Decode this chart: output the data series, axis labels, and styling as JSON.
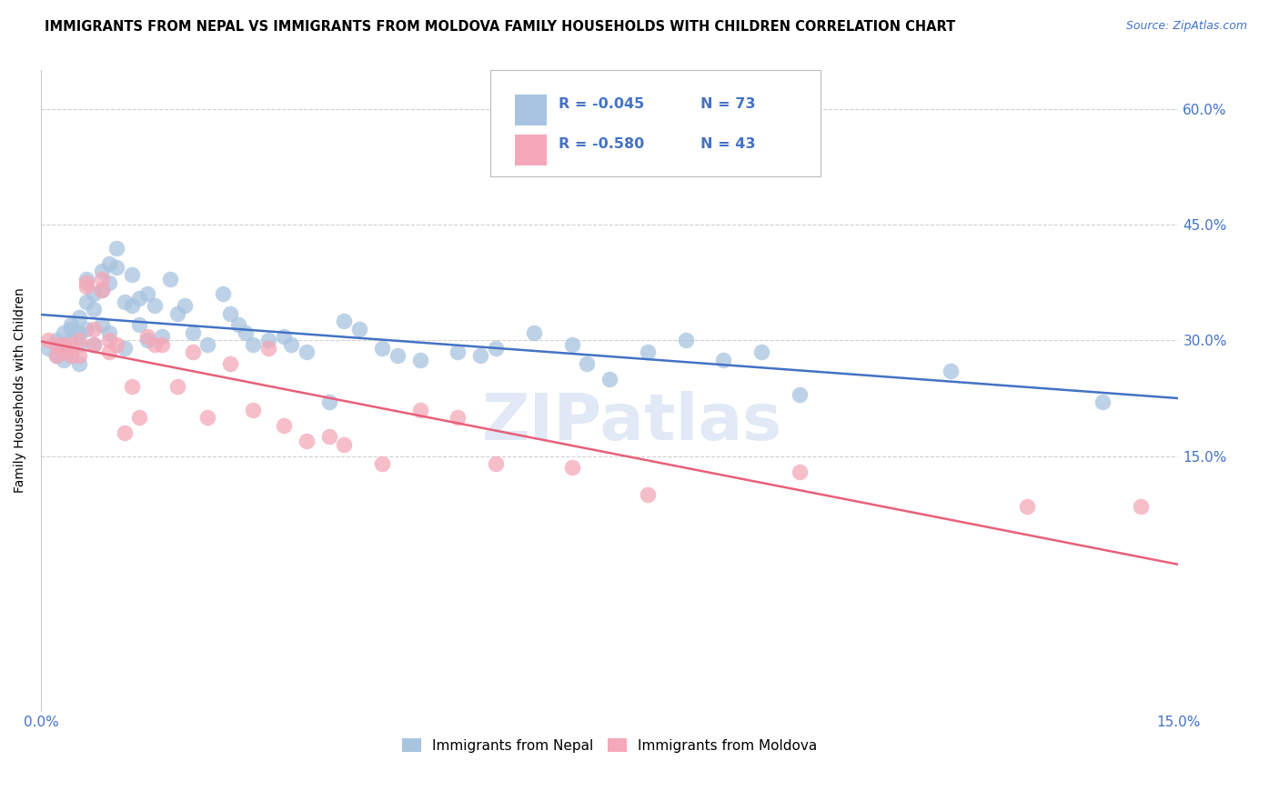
{
  "title": "IMMIGRANTS FROM NEPAL VS IMMIGRANTS FROM MOLDOVA FAMILY HOUSEHOLDS WITH CHILDREN CORRELATION CHART",
  "source": "Source: ZipAtlas.com",
  "ylabel": "Family Households with Children",
  "nepal_color": "#a8c4e0",
  "moldova_color": "#f4a8b8",
  "nepal_line_color": "#4472c4",
  "moldova_line_color": "#e8607a",
  "legend_r_color": "#4472c4",
  "nepal_R": "-0.045",
  "nepal_N": "73",
  "moldova_R": "-0.580",
  "moldova_N": "43",
  "nepal_x": [
    0.001,
    0.002,
    0.002,
    0.003,
    0.003,
    0.003,
    0.003,
    0.004,
    0.004,
    0.004,
    0.004,
    0.005,
    0.005,
    0.005,
    0.005,
    0.006,
    0.006,
    0.006,
    0.007,
    0.007,
    0.007,
    0.008,
    0.008,
    0.008,
    0.009,
    0.009,
    0.009,
    0.01,
    0.01,
    0.011,
    0.011,
    0.012,
    0.012,
    0.013,
    0.013,
    0.014,
    0.014,
    0.015,
    0.016,
    0.017,
    0.018,
    0.019,
    0.02,
    0.022,
    0.024,
    0.025,
    0.026,
    0.027,
    0.028,
    0.03,
    0.032,
    0.033,
    0.035,
    0.038,
    0.04,
    0.042,
    0.045,
    0.047,
    0.05,
    0.055,
    0.058,
    0.06,
    0.065,
    0.07,
    0.072,
    0.075,
    0.08,
    0.085,
    0.09,
    0.095,
    0.1,
    0.12,
    0.14
  ],
  "nepal_y": [
    0.29,
    0.3,
    0.28,
    0.31,
    0.295,
    0.285,
    0.275,
    0.32,
    0.315,
    0.3,
    0.285,
    0.33,
    0.31,
    0.295,
    0.27,
    0.38,
    0.35,
    0.315,
    0.36,
    0.34,
    0.295,
    0.39,
    0.365,
    0.32,
    0.4,
    0.375,
    0.31,
    0.42,
    0.395,
    0.35,
    0.29,
    0.385,
    0.345,
    0.355,
    0.32,
    0.36,
    0.3,
    0.345,
    0.305,
    0.38,
    0.335,
    0.345,
    0.31,
    0.295,
    0.36,
    0.335,
    0.32,
    0.31,
    0.295,
    0.3,
    0.305,
    0.295,
    0.285,
    0.22,
    0.325,
    0.315,
    0.29,
    0.28,
    0.275,
    0.285,
    0.28,
    0.29,
    0.31,
    0.295,
    0.27,
    0.25,
    0.285,
    0.3,
    0.275,
    0.285,
    0.23,
    0.26,
    0.22
  ],
  "moldova_x": [
    0.001,
    0.002,
    0.002,
    0.003,
    0.003,
    0.004,
    0.004,
    0.005,
    0.005,
    0.006,
    0.006,
    0.007,
    0.007,
    0.008,
    0.008,
    0.009,
    0.009,
    0.01,
    0.011,
    0.012,
    0.013,
    0.014,
    0.015,
    0.016,
    0.018,
    0.02,
    0.022,
    0.025,
    0.028,
    0.03,
    0.032,
    0.035,
    0.038,
    0.04,
    0.045,
    0.05,
    0.055,
    0.06,
    0.07,
    0.08,
    0.1,
    0.13,
    0.145
  ],
  "moldova_y": [
    0.3,
    0.295,
    0.28,
    0.295,
    0.285,
    0.295,
    0.28,
    0.3,
    0.28,
    0.375,
    0.37,
    0.315,
    0.295,
    0.38,
    0.365,
    0.3,
    0.285,
    0.295,
    0.18,
    0.24,
    0.2,
    0.305,
    0.295,
    0.295,
    0.24,
    0.285,
    0.2,
    0.27,
    0.21,
    0.29,
    0.19,
    0.17,
    0.175,
    0.165,
    0.14,
    0.21,
    0.2,
    0.14,
    0.135,
    0.1,
    0.13,
    0.085,
    0.085
  ],
  "watermark": "ZIPatlas",
  "background_color": "#ffffff",
  "grid_color": "#d0d0d0",
  "xlim": [
    0.0,
    0.15
  ],
  "ylim": [
    -0.18,
    0.65
  ],
  "xtick_positions": [
    0.0,
    0.03,
    0.06,
    0.09,
    0.12,
    0.15
  ],
  "xtick_labels": [
    "0.0%",
    "",
    "",
    "",
    "",
    "15.0%"
  ],
  "ytick_positions": [
    0.15,
    0.3,
    0.45,
    0.6
  ],
  "ytick_labels": [
    "15.0%",
    "30.0%",
    "45.0%",
    "60.0%"
  ]
}
